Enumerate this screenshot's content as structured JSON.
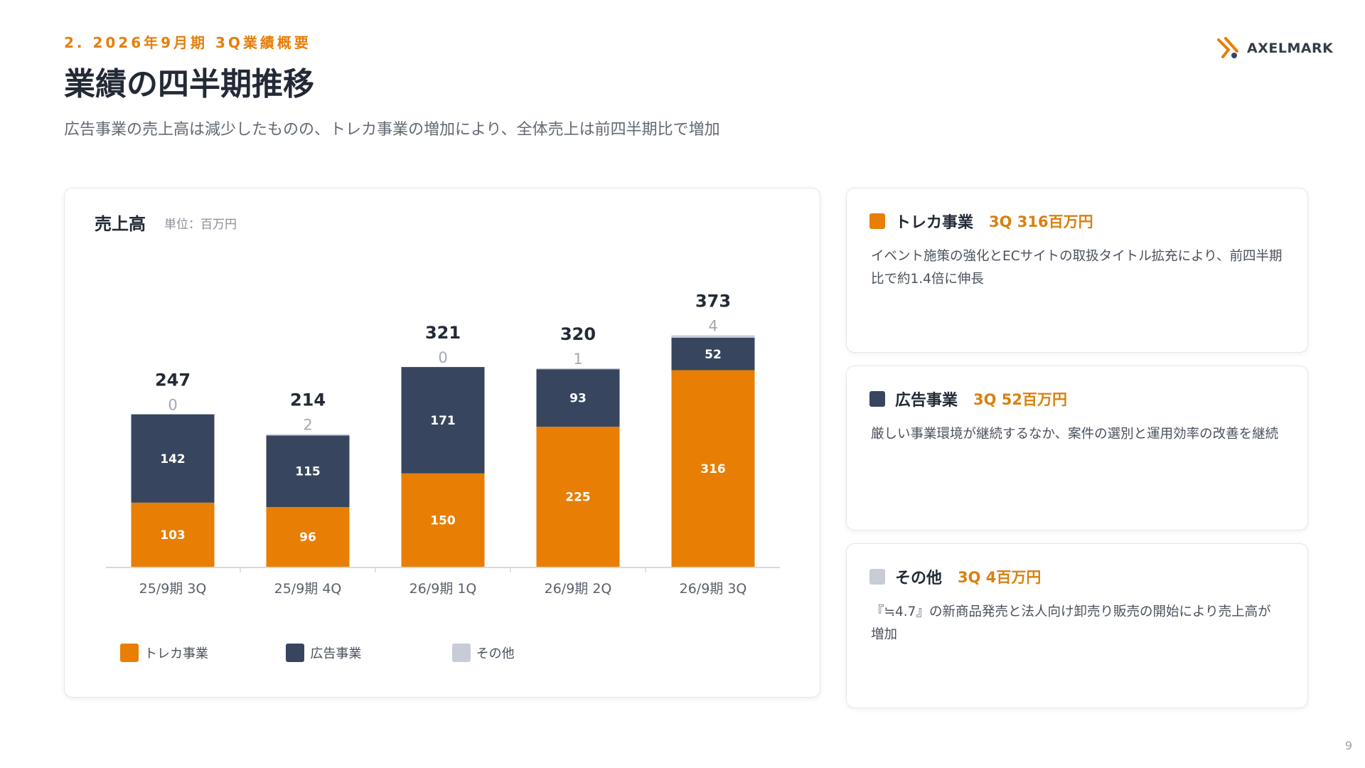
{
  "header": {
    "section_label": "2. 2026年9月期 3Q業績概要",
    "title": "業績の四半期推移",
    "subtitle": "広告事業の売上高は減少したものの、トレカ事業の増加により、全体売上は前四半期比で増加",
    "logo_text": "AXELMARK"
  },
  "chart_card": {
    "title": "売上高",
    "unit": "単位：百万円"
  },
  "chart_data": {
    "type": "bar",
    "stacked": true,
    "title": "売上高",
    "unit": "単位：百万円",
    "categories": [
      "25/9期 3Q",
      "25/9期 4Q",
      "26/9期 1Q",
      "26/9期 2Q",
      "26/9期 3Q"
    ],
    "series": [
      {
        "name": "トレカ事業",
        "color": "#e87e04",
        "values": [
          103,
          96,
          150,
          225,
          316
        ]
      },
      {
        "name": "広告事業",
        "color": "#37465e",
        "values": [
          142,
          115,
          171,
          93,
          52
        ]
      },
      {
        "name": "その他",
        "color": "#c8ccd6",
        "values": [
          0,
          2,
          0,
          1,
          4
        ]
      }
    ],
    "totals": [
      247,
      214,
      321,
      320,
      373
    ],
    "ylim": [
      0,
      400
    ],
    "grid": false,
    "legend": "bottom"
  },
  "legend": [
    {
      "label": "トレカ事業",
      "color": "#e87e04"
    },
    {
      "label": "広告事業",
      "color": "#37465e"
    },
    {
      "label": "その他",
      "color": "#c8ccd6"
    }
  ],
  "segments": [
    {
      "name": "トレカ事業",
      "value": "3Q 316百万円",
      "color": "#e87e04",
      "description": "イベント施策の強化とECサイトの取扱タイトル拡充により、前四半期比で約1.4倍に伸長"
    },
    {
      "name": "広告事業",
      "value": "3Q 52百万円",
      "color": "#37465e",
      "description": "厳しい事業環境が継続するなか、案件の選別と運用効率の改善を継続"
    },
    {
      "name": "その他",
      "value": "3Q 4百万円",
      "color": "#c8ccd6",
      "description": "『≒4.7』の新商品発売と法人向け卸売り販売の開始により売上高が増加"
    }
  ],
  "page_number": "9"
}
